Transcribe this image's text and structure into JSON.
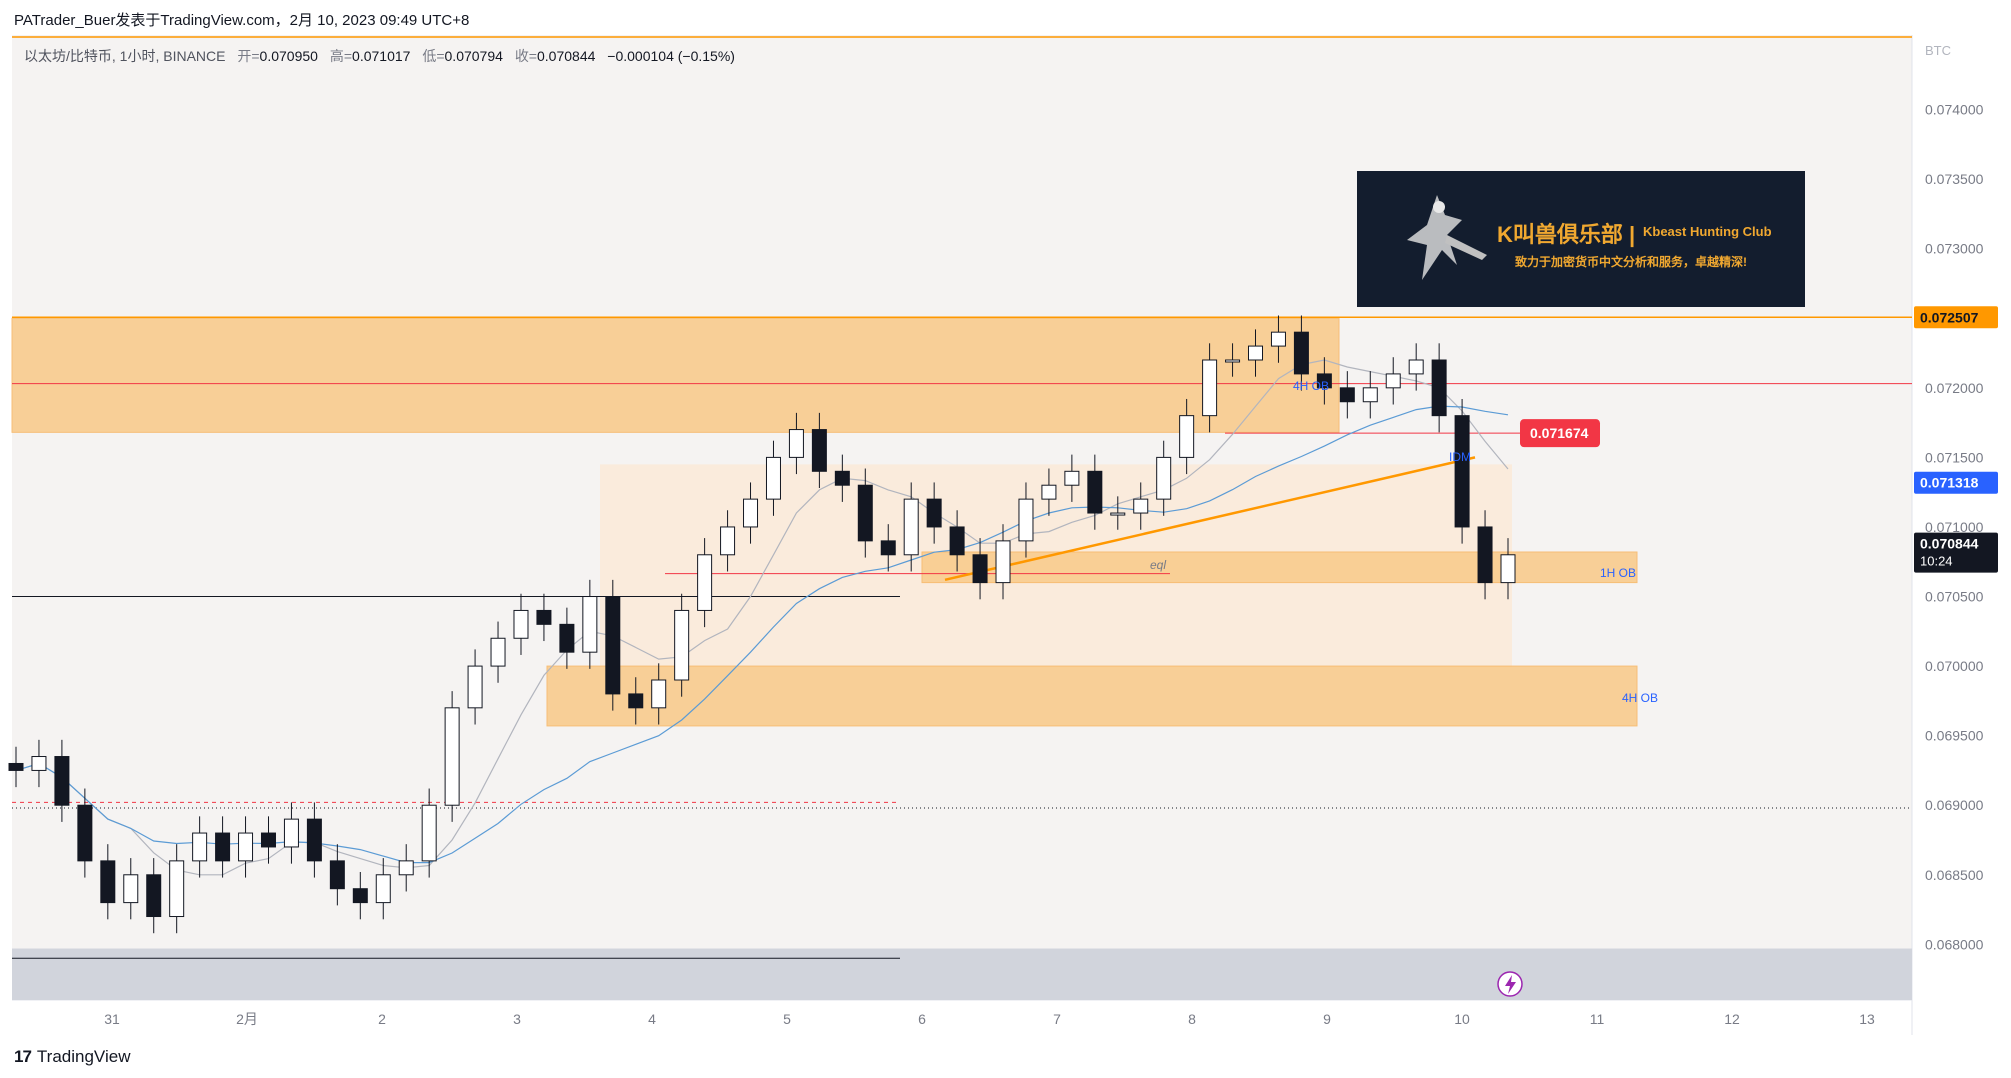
{
  "header": {
    "text": "PATrader_Buer发表于TradingView.com，2月 10, 2023 09:49 UTC+8"
  },
  "legend": {
    "symbol": "以太坊/比特币, 1小时, BINANCE",
    "open_label": "开=",
    "open": "0.070950",
    "high_label": "高=",
    "high": "0.071017",
    "low_label": "低=",
    "low": "0.070794",
    "close_label": "收=",
    "close": "0.070844",
    "change": "−0.000104 (−0.15%)"
  },
  "banner": {
    "title": "K叫兽俱乐部 |",
    "subtitle": "Kbeast Hunting Club",
    "slogan": "致力于加密货币中文分析和服务，卓越精深!"
  },
  "footer": {
    "logo_mark": "17",
    "brand": "TradingView"
  },
  "colors": {
    "zone_fill": "#f9cc8e",
    "zone_light": "#fbe9d6",
    "candle": "#131722",
    "trendline": "#ff9800",
    "red_line": "#f23645",
    "blue_ma": "#5b9bd5",
    "gray_ma": "#b2b5be",
    "last_price_bg": "#131722",
    "red_label_bg": "#f23645",
    "blue_label_bg": "#2962ff",
    "orange_label_bg": "#ff9800",
    "bottom_zone": "#d1d4dc"
  },
  "chart_data": {
    "type": "candlestick",
    "title": "",
    "currency": "BTC",
    "y_ticks": [
      "0.074000",
      "0.073500",
      "0.073000",
      "0.072500",
      "0.072000",
      "0.071500",
      "0.071000",
      "0.070500",
      "0.070000",
      "0.069500",
      "0.069000",
      "0.068500",
      "0.068000"
    ],
    "ylim": [
      0.0676,
      0.0745
    ],
    "x_ticks": [
      "31",
      "2月",
      "2",
      "3",
      "4",
      "5",
      "6",
      "7",
      "8",
      "9",
      "10",
      "11",
      "12",
      "13"
    ],
    "price_labels": {
      "resistance": "0.072507",
      "idm_level": "0.071674",
      "ma_value": "0.071318",
      "last_price": "0.070844",
      "countdown": "10:24"
    },
    "annotations": [
      "4H OB",
      "IDM",
      "eql",
      "1H OB",
      "4H OB"
    ],
    "zones": [
      {
        "label": "",
        "y_top": 0.0725,
        "y_bottom": 0.07168,
        "x_start": "31",
        "x_end": "9"
      },
      {
        "label": "1H OB",
        "y_top": 0.07082,
        "y_bottom": 0.0706,
        "x_start": "6",
        "x_end": "11"
      },
      {
        "label": "4H OB",
        "y_top": 0.07,
        "y_bottom": 0.06957,
        "x_start": "3",
        "x_end": "11"
      }
    ],
    "key_levels": [
      0.072507,
      0.07203,
      0.071674,
      0.070665,
      0.0705,
      0.06902,
      0.0679
    ],
    "closes": [
      0.06925,
      0.06935,
      0.069,
      0.0686,
      0.0683,
      0.0685,
      0.0682,
      0.0686,
      0.0688,
      0.0686,
      0.0688,
      0.0687,
      0.0689,
      0.0686,
      0.0684,
      0.0683,
      0.0685,
      0.0686,
      0.069,
      0.0697,
      0.07,
      0.0702,
      0.0704,
      0.0703,
      0.0701,
      0.0705,
      0.0698,
      0.0697,
      0.0699,
      0.0704,
      0.0708,
      0.071,
      0.0712,
      0.0715,
      0.0717,
      0.0714,
      0.0713,
      0.0709,
      0.0708,
      0.0712,
      0.071,
      0.0708,
      0.0706,
      0.0709,
      0.0712,
      0.0713,
      0.0714,
      0.0711,
      0.0711,
      0.0712,
      0.0715,
      0.0718,
      0.0722,
      0.0722,
      0.0723,
      0.0724,
      0.0721,
      0.072,
      0.0719,
      0.072,
      0.0721,
      0.0722,
      0.0718,
      0.071,
      0.0706,
      0.0708
    ]
  }
}
